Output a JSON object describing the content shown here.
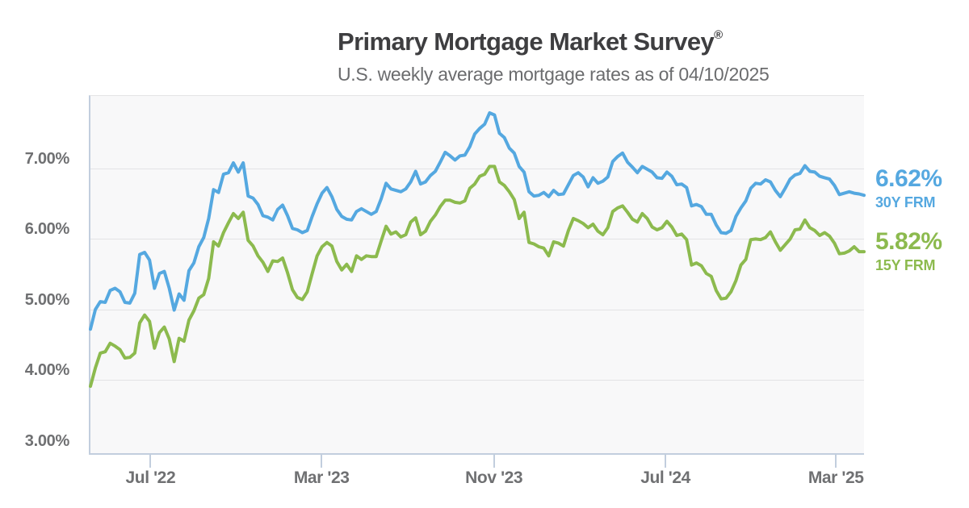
{
  "header": {
    "title": "Primary Mortgage Market Survey",
    "registered": "®",
    "subtitle": "U.S. weekly average mortgage rates as of 04/10/2025"
  },
  "colors": {
    "line_30y": "#55a8e0",
    "line_15y": "#8cba4e",
    "title_text": "#3e3e40",
    "subtitle_text": "#6b6c6e",
    "axis_text": "#6f7072",
    "axis_border": "#c2cede",
    "gridline": "#e3e3e5",
    "plot_background": "#f8f8f9"
  },
  "chart_data": {
    "type": "line",
    "title": "Primary Mortgage Market Survey®",
    "subtitle": "U.S. weekly average mortgage rates as of 04/10/2025",
    "x_unit": "weekly observations, Apr 2022 - Apr 10 2025",
    "grid": "horizontal only",
    "legend_position": "right, latest values",
    "ylim": [
      2.96,
      8.03
    ],
    "yticks": [
      {
        "value": 7,
        "label": "7.00%"
      },
      {
        "value": 6,
        "label": "6.00%"
      },
      {
        "value": 5,
        "label": "5.00%"
      },
      {
        "value": 4,
        "label": "4.00%"
      },
      {
        "value": 3,
        "label": "3.00%"
      }
    ],
    "xticks": [
      {
        "pos": 12.2,
        "label": "Jul '22"
      },
      {
        "pos": 46.9,
        "label": "Mar '23"
      },
      {
        "pos": 81.9,
        "label": "Nov '23"
      },
      {
        "pos": 116.7,
        "label": "Jul '24"
      },
      {
        "pos": 151.3,
        "label": "Mar '25"
      }
    ],
    "series": [
      {
        "name": "30Y FRM",
        "latest": "6.62%",
        "color": "#55a8e0",
        "values": [
          4.72,
          5.0,
          5.11,
          5.1,
          5.27,
          5.3,
          5.25,
          5.1,
          5.09,
          5.23,
          5.78,
          5.81,
          5.7,
          5.3,
          5.51,
          5.54,
          5.3,
          4.99,
          5.22,
          5.13,
          5.55,
          5.66,
          5.89,
          6.02,
          6.29,
          6.7,
          6.66,
          6.92,
          6.94,
          7.08,
          6.95,
          7.08,
          6.61,
          6.58,
          6.49,
          6.33,
          6.31,
          6.27,
          6.42,
          6.48,
          6.33,
          6.15,
          6.13,
          6.09,
          6.12,
          6.32,
          6.5,
          6.65,
          6.73,
          6.6,
          6.42,
          6.32,
          6.28,
          6.27,
          6.39,
          6.43,
          6.39,
          6.35,
          6.39,
          6.57,
          6.79,
          6.71,
          6.69,
          6.67,
          6.71,
          6.81,
          6.96,
          6.78,
          6.81,
          6.9,
          6.96,
          7.09,
          7.23,
          7.18,
          7.12,
          7.18,
          7.19,
          7.31,
          7.49,
          7.57,
          7.63,
          7.79,
          7.76,
          7.5,
          7.44,
          7.29,
          7.22,
          7.03,
          6.95,
          6.67,
          6.61,
          6.62,
          6.66,
          6.6,
          6.69,
          6.63,
          6.64,
          6.77,
          6.9,
          6.94,
          6.88,
          6.74,
          6.87,
          6.79,
          6.82,
          6.88,
          7.1,
          7.17,
          7.22,
          7.09,
          7.02,
          6.94,
          7.03,
          6.99,
          6.95,
          6.87,
          6.86,
          6.95,
          6.89,
          6.77,
          6.78,
          6.73,
          6.47,
          6.49,
          6.46,
          6.35,
          6.35,
          6.2,
          6.09,
          6.08,
          6.12,
          6.32,
          6.44,
          6.54,
          6.72,
          6.79,
          6.78,
          6.84,
          6.81,
          6.69,
          6.6,
          6.72,
          6.85,
          6.91,
          6.93,
          7.04,
          6.96,
          6.95,
          6.89,
          6.87,
          6.85,
          6.76,
          6.63,
          6.65,
          6.67,
          6.65,
          6.64,
          6.62
        ]
      },
      {
        "name": "15Y FRM",
        "latest": "5.82%",
        "color": "#8cba4e",
        "values": [
          3.91,
          4.17,
          4.38,
          4.4,
          4.52,
          4.48,
          4.43,
          4.31,
          4.32,
          4.38,
          4.81,
          4.92,
          4.83,
          4.45,
          4.67,
          4.75,
          4.58,
          4.26,
          4.59,
          4.55,
          4.85,
          4.98,
          5.16,
          5.21,
          5.44,
          5.96,
          5.9,
          6.09,
          6.23,
          6.36,
          6.29,
          6.38,
          5.98,
          5.9,
          5.76,
          5.67,
          5.54,
          5.69,
          5.68,
          5.73,
          5.52,
          5.28,
          5.17,
          5.14,
          5.25,
          5.51,
          5.76,
          5.89,
          5.95,
          5.9,
          5.68,
          5.56,
          5.64,
          5.54,
          5.76,
          5.71,
          5.76,
          5.75,
          5.75,
          5.97,
          6.18,
          6.07,
          6.1,
          6.03,
          6.06,
          6.24,
          6.3,
          6.06,
          6.11,
          6.25,
          6.34,
          6.46,
          6.55,
          6.55,
          6.52,
          6.51,
          6.54,
          6.72,
          6.78,
          6.89,
          6.92,
          7.03,
          7.03,
          6.81,
          6.76,
          6.67,
          6.56,
          6.29,
          6.38,
          5.95,
          5.93,
          5.89,
          5.87,
          5.76,
          5.96,
          5.94,
          5.9,
          6.12,
          6.29,
          6.26,
          6.22,
          6.16,
          6.21,
          6.11,
          6.06,
          6.16,
          6.39,
          6.44,
          6.47,
          6.38,
          6.28,
          6.24,
          6.36,
          6.29,
          6.17,
          6.13,
          6.16,
          6.25,
          6.17,
          6.05,
          6.07,
          5.99,
          5.63,
          5.66,
          5.62,
          5.51,
          5.47,
          5.27,
          5.15,
          5.16,
          5.25,
          5.41,
          5.63,
          5.71,
          5.99,
          6.0,
          5.99,
          6.02,
          6.1,
          5.96,
          5.84,
          5.92,
          6.0,
          6.13,
          6.14,
          6.27,
          6.16,
          6.12,
          6.05,
          6.09,
          6.04,
          5.94,
          5.79,
          5.8,
          5.83,
          5.89,
          5.82,
          5.82
        ]
      }
    ]
  }
}
